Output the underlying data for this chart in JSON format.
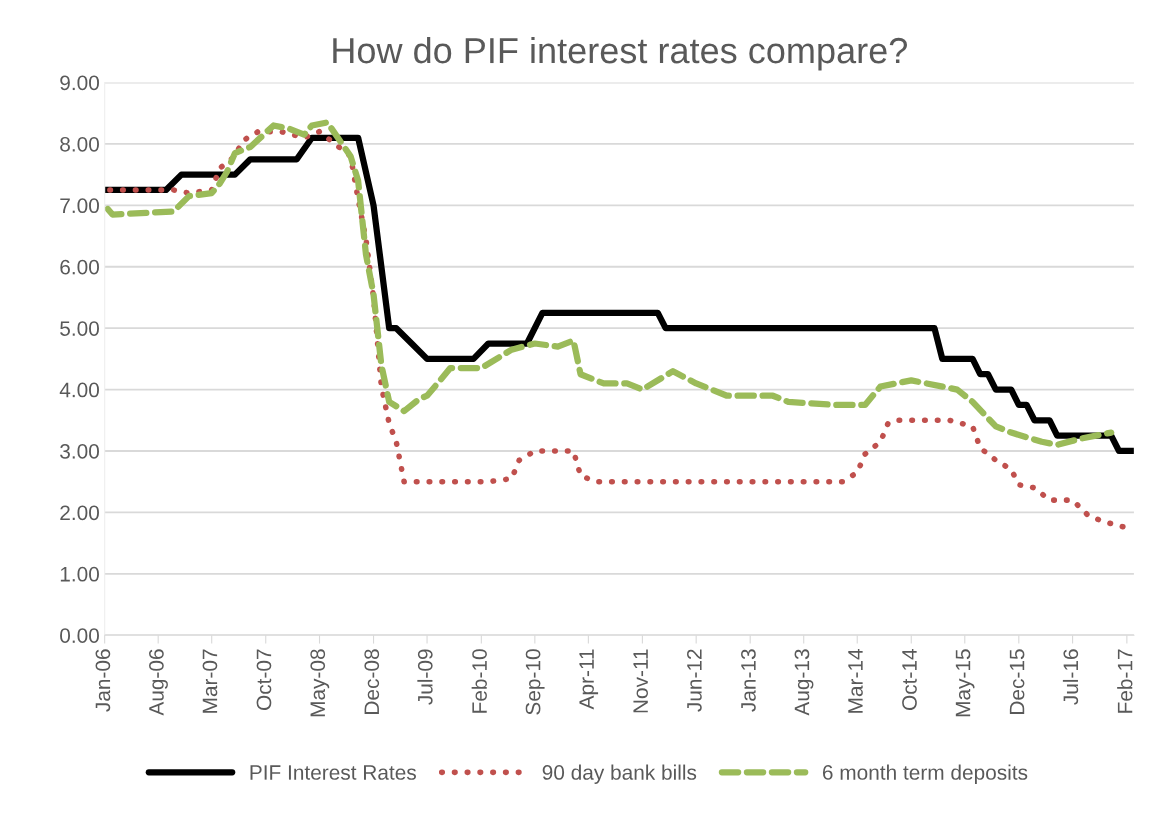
{
  "chart_data": {
    "type": "line",
    "title": "How do PIF interest rates compare?",
    "xlim": [
      "2006-01",
      "2017-03"
    ],
    "xticks": [
      {
        "value": "2006-01",
        "label": "Jan-06"
      },
      {
        "value": "2006-08",
        "label": "Aug-06"
      },
      {
        "value": "2007-03",
        "label": "Mar-07"
      },
      {
        "value": "2007-10",
        "label": "Oct-07"
      },
      {
        "value": "2008-05",
        "label": "May-08"
      },
      {
        "value": "2008-12",
        "label": "Dec-08"
      },
      {
        "value": "2009-07",
        "label": "Jul-09"
      },
      {
        "value": "2010-02",
        "label": "Feb-10"
      },
      {
        "value": "2010-09",
        "label": "Sep-10"
      },
      {
        "value": "2011-04",
        "label": "Apr-11"
      },
      {
        "value": "2011-11",
        "label": "Nov-11"
      },
      {
        "value": "2012-06",
        "label": "Jun-12"
      },
      {
        "value": "2013-01",
        "label": "Jan-13"
      },
      {
        "value": "2013-08",
        "label": "Aug-13"
      },
      {
        "value": "2014-03",
        "label": "Mar-14"
      },
      {
        "value": "2014-10",
        "label": "Oct-14"
      },
      {
        "value": "2015-05",
        "label": "May-15"
      },
      {
        "value": "2015-12",
        "label": "Dec-15"
      },
      {
        "value": "2016-07",
        "label": "Jul-16"
      },
      {
        "value": "2017-02",
        "label": "Feb-17"
      }
    ],
    "ylim": [
      0,
      9
    ],
    "yticks": [
      {
        "value": 0,
        "label": "0.00"
      },
      {
        "value": 1,
        "label": "1.00"
      },
      {
        "value": 2,
        "label": "2.00"
      },
      {
        "value": 3,
        "label": "3.00"
      },
      {
        "value": 4,
        "label": "4.00"
      },
      {
        "value": 5,
        "label": "5.00"
      },
      {
        "value": 6,
        "label": "6.00"
      },
      {
        "value": 7,
        "label": "7.00"
      },
      {
        "value": 8,
        "label": "8.00"
      },
      {
        "value": 9,
        "label": "9.00"
      }
    ],
    "grid": "y",
    "legend": "bottom",
    "marker": "none",
    "series": [
      {
        "name": "PIF Interest Rates",
        "color": "#000000",
        "line_style": "solid",
        "x": [
          "2006-01",
          "2006-09",
          "2006-11",
          "2007-06",
          "2007-08",
          "2008-02",
          "2008-04",
          "2008-10",
          "2008-12",
          "2009-02",
          "2009-03",
          "2009-05",
          "2009-07",
          "2010-01",
          "2010-03",
          "2010-08",
          "2010-10",
          "2012-01",
          "2012-02",
          "2015-01",
          "2015-02",
          "2015-06",
          "2015-07",
          "2015-08",
          "2015-09",
          "2015-11",
          "2015-12",
          "2016-01",
          "2016-02",
          "2016-04",
          "2016-05",
          "2016-12",
          "2017-01",
          "2017-03"
        ],
        "values": [
          7.25,
          7.25,
          7.5,
          7.5,
          7.75,
          7.75,
          8.1,
          8.1,
          7.0,
          5.0,
          5.0,
          4.75,
          4.5,
          4.5,
          4.75,
          4.75,
          5.25,
          5.25,
          5.0,
          5.0,
          4.5,
          4.5,
          4.25,
          4.25,
          4.0,
          4.0,
          3.75,
          3.75,
          3.5,
          3.5,
          3.25,
          3.25,
          3.0,
          3.0
        ]
      },
      {
        "name": "90 day bank bills",
        "color": "#c0504d",
        "line_style": "dotted",
        "x": [
          "2006-01",
          "2006-10",
          "2006-12",
          "2007-03",
          "2007-04",
          "2007-06",
          "2007-07",
          "2007-09",
          "2007-12",
          "2008-03",
          "2008-05",
          "2008-07",
          "2008-09",
          "2008-10",
          "2008-11",
          "2008-12",
          "2009-01",
          "2009-02",
          "2009-03",
          "2009-04",
          "2010-03",
          "2010-06",
          "2010-07",
          "2010-09",
          "2011-02",
          "2011-03",
          "2011-05",
          "2014-01",
          "2014-03",
          "2014-04",
          "2014-06",
          "2014-07",
          "2014-08",
          "2015-03",
          "2015-06",
          "2015-07",
          "2015-09",
          "2015-11",
          "2015-12",
          "2016-02",
          "2016-04",
          "2016-07",
          "2016-09",
          "2016-11",
          "2017-02"
        ],
        "values": [
          7.25,
          7.25,
          7.2,
          7.25,
          7.6,
          7.8,
          8.05,
          8.2,
          8.2,
          8.1,
          8.2,
          8.0,
          7.8,
          7.1,
          6.45,
          5.5,
          4.05,
          3.45,
          3.15,
          2.5,
          2.5,
          2.55,
          2.85,
          3.0,
          3.0,
          2.6,
          2.5,
          2.5,
          2.65,
          2.95,
          3.15,
          3.45,
          3.5,
          3.5,
          3.4,
          3.05,
          2.85,
          2.7,
          2.45,
          2.4,
          2.2,
          2.2,
          1.95,
          1.85,
          1.75
        ]
      },
      {
        "name": "6 month term deposits",
        "color": "#9bbb59",
        "line_style": "dashed",
        "x": [
          "2006-01",
          "2006-02",
          "2006-10",
          "2006-12",
          "2007-03",
          "2007-04",
          "2007-05",
          "2007-06",
          "2007-08",
          "2007-11",
          "2008-01",
          "2008-03",
          "2008-04",
          "2008-06",
          "2008-09",
          "2008-10",
          "2008-11",
          "2008-12",
          "2009-01",
          "2009-02",
          "2009-04",
          "2009-06",
          "2009-07",
          "2009-09",
          "2009-10",
          "2010-02",
          "2010-06",
          "2010-09",
          "2010-12",
          "2011-02",
          "2011-03",
          "2011-06",
          "2011-09",
          "2011-11",
          "2012-03",
          "2012-06",
          "2012-10",
          "2013-04",
          "2013-06",
          "2013-12",
          "2014-04",
          "2014-06",
          "2014-10",
          "2014-12",
          "2015-04",
          "2015-06",
          "2015-09",
          "2015-11",
          "2016-03",
          "2016-05",
          "2016-08",
          "2016-12"
        ],
        "values": [
          7.0,
          6.85,
          6.9,
          7.15,
          7.2,
          7.35,
          7.55,
          7.85,
          7.95,
          8.3,
          8.25,
          8.15,
          8.3,
          8.35,
          7.8,
          7.4,
          6.2,
          5.55,
          4.4,
          3.8,
          3.65,
          3.85,
          3.9,
          4.2,
          4.35,
          4.35,
          4.65,
          4.75,
          4.7,
          4.8,
          4.25,
          4.1,
          4.1,
          4.0,
          4.3,
          4.1,
          3.9,
          3.9,
          3.8,
          3.75,
          3.75,
          4.05,
          4.15,
          4.1,
          4.0,
          3.8,
          3.4,
          3.3,
          3.15,
          3.1,
          3.2,
          3.3
        ]
      }
    ]
  }
}
